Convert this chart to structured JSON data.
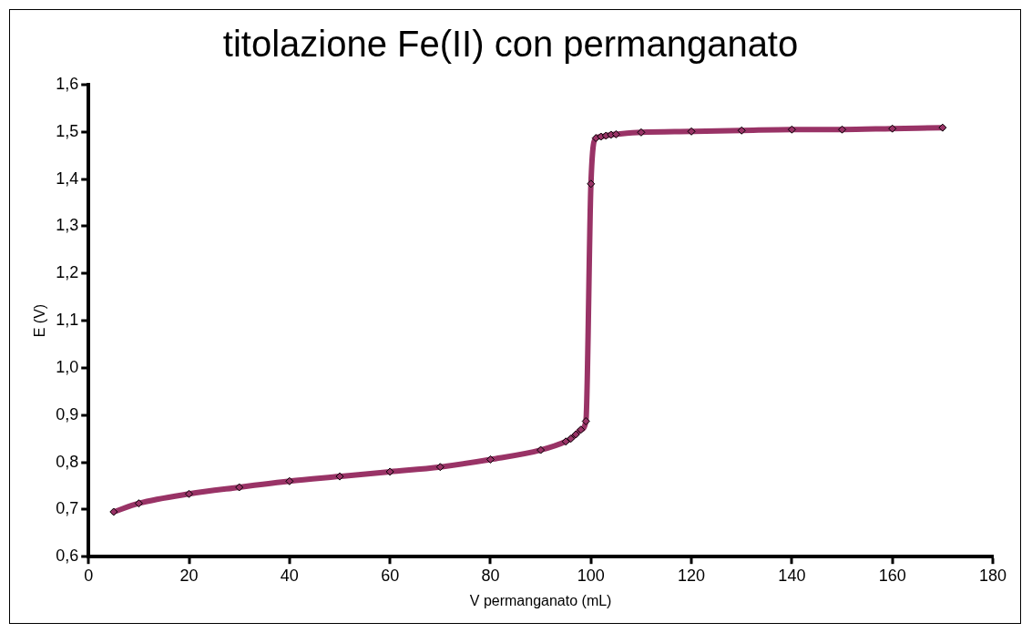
{
  "chart_data": {
    "type": "line",
    "title": "titolazione Fe(II) con permanganato",
    "xlabel": "V permanganato (mL)",
    "ylabel": "E (V)",
    "x": [
      5,
      10,
      20,
      30,
      40,
      50,
      60,
      70,
      80,
      90,
      95,
      96,
      97,
      98,
      99,
      100,
      101,
      102,
      103,
      104,
      105,
      110,
      120,
      130,
      140,
      150,
      160,
      170
    ],
    "series": [
      {
        "color": "#993366",
        "values": [
          0.695,
          0.713,
          0.733,
          0.747,
          0.76,
          0.77,
          0.78,
          0.79,
          0.806,
          0.826,
          0.844,
          0.85,
          0.859,
          0.869,
          0.887,
          1.39,
          1.487,
          1.49,
          1.492,
          1.494,
          1.495,
          1.499,
          1.501,
          1.503,
          1.505,
          1.505,
          1.507,
          1.509
        ]
      }
    ],
    "xlim": [
      0,
      180
    ],
    "xticks": [
      0,
      20,
      40,
      60,
      80,
      100,
      120,
      140,
      160,
      180
    ],
    "ylim": [
      0.6,
      1.6
    ],
    "yticks": [
      {
        "value": 0.6,
        "label": "0,6"
      },
      {
        "value": 0.7,
        "label": "0,7"
      },
      {
        "value": 0.8,
        "label": "0,8"
      },
      {
        "value": 0.9,
        "label": "0,9"
      },
      {
        "value": 1.0,
        "label": "1,0"
      },
      {
        "value": 1.1,
        "label": "1,1"
      },
      {
        "value": 1.2,
        "label": "1,2"
      },
      {
        "value": 1.3,
        "label": "1,3"
      },
      {
        "value": 1.4,
        "label": "1,4"
      },
      {
        "value": 1.5,
        "label": "1,5"
      },
      {
        "value": 1.6,
        "label": "1,6"
      }
    ],
    "grid": false,
    "legend": false,
    "marker": "diamond",
    "line_style": "solid"
  }
}
